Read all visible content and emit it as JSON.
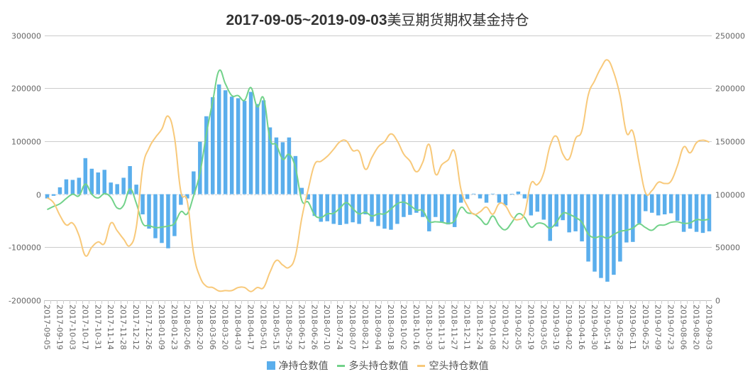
{
  "title": {
    "date_range": "2017-09-05~2019-09-03",
    "text": "美豆期货期权基金持仓"
  },
  "chart_data": {
    "type": "bar+line",
    "title": "2017-09-05~2019-09-03美豆期货期权基金持仓",
    "left_axis": {
      "ticks": [
        "300000",
        "200000",
        "100000",
        "0",
        "-100000",
        "-200000"
      ],
      "range": [
        -200000,
        300000
      ]
    },
    "right_axis": {
      "ticks": [
        "250000",
        "200000",
        "150000",
        "100000",
        "50000",
        "0"
      ],
      "range": [
        0,
        250000
      ]
    },
    "grid": true,
    "legend_position": "bottom",
    "x_tick_labels": [
      "2017-09-05",
      "2017-09-19",
      "2017-10-03",
      "2017-10-17",
      "2017-10-31",
      "2017-11-14",
      "2017-11-28",
      "2017-12-12",
      "2017-12-26",
      "2018-01-09",
      "2018-01-23",
      "2018-02-06",
      "2018-02-20",
      "2018-03-06",
      "2018-03-20",
      "2018-04-03",
      "2018-04-17",
      "2018-05-01",
      "2018-05-15",
      "2018-05-29",
      "2018-06-12",
      "2018-06-26",
      "2018-07-10",
      "2018-07-24",
      "2018-08-07",
      "2018-08-21",
      "2018-09-04",
      "2018-09-18",
      "2018-10-02",
      "2018-10-16",
      "2018-10-30",
      "2018-11-13",
      "2018-11-27",
      "2018-12-11",
      "2018-12-24",
      "2019-01-08",
      "2019-01-22",
      "2019-02-05",
      "2019-02-19",
      "2019-03-05",
      "2019-03-19",
      "2019-04-02",
      "2019-04-16",
      "2019-04-30",
      "2019-05-14",
      "2019-05-28",
      "2019-06-11",
      "2019-06-25",
      "2019-07-09",
      "2019-07-23",
      "2019-08-06",
      "2019-08-20",
      "2019-09-03"
    ],
    "series": [
      {
        "name": "净持仓数值",
        "type": "bar",
        "axis": "left",
        "color": "#5aaeec",
        "values": [
          -8000,
          -3000,
          13000,
          28000,
          27000,
          31000,
          68000,
          48000,
          41000,
          46000,
          22000,
          19000,
          31000,
          53000,
          18000,
          -38000,
          -65000,
          -83000,
          -92000,
          -102000,
          -79000,
          -20000,
          -8000,
          43000,
          99000,
          147000,
          183000,
          207000,
          196000,
          184000,
          181000,
          176000,
          193000,
          170000,
          177000,
          126000,
          107000,
          98000,
          107000,
          72000,
          12000,
          -10000,
          -41000,
          -52000,
          -51000,
          -56000,
          -58000,
          -56000,
          -53000,
          -56000,
          -38000,
          -52000,
          -60000,
          -65000,
          -67000,
          -56000,
          -43000,
          -39000,
          -35000,
          -43000,
          -70000,
          -43000,
          -53000,
          -57000,
          -62000,
          -16000,
          -9000,
          1000,
          -8000,
          -16000,
          1000,
          -16000,
          -21000,
          500,
          5000,
          -8000,
          -40000,
          -33000,
          -48000,
          -88000,
          -61000,
          -49000,
          -72000,
          -70000,
          -89000,
          -127000,
          -146000,
          -158000,
          -165000,
          -152000,
          -127000,
          -91000,
          -90000,
          -55000,
          -32000,
          -35000,
          -40000,
          -38000,
          -36000,
          -50000,
          -71000,
          -65000,
          -71000,
          -73000,
          -70000
        ]
      },
      {
        "name": "多头持仓数值",
        "type": "line",
        "axis": "left",
        "color": "#72d28a",
        "values": [
          -29000,
          -23000,
          -18000,
          -8000,
          0,
          -3000,
          19000,
          0,
          -7000,
          1000,
          -6000,
          -26000,
          -21000,
          10000,
          -17000,
          -55000,
          -59000,
          -63000,
          -62000,
          -60000,
          -55000,
          -33000,
          -37000,
          -3000,
          40000,
          113000,
          175000,
          233000,
          208000,
          186000,
          186000,
          177000,
          201000,
          165000,
          181000,
          104000,
          93000,
          66000,
          75000,
          50000,
          -12000,
          -15000,
          -39000,
          -44000,
          -37000,
          -36000,
          -26000,
          -16000,
          -27000,
          -37000,
          -34000,
          -41000,
          -37000,
          -37000,
          -28000,
          -18000,
          -15000,
          -21000,
          -30000,
          -31000,
          -51000,
          -52000,
          -53000,
          -55000,
          -50000,
          -25000,
          -35000,
          -37000,
          -46000,
          -57000,
          -41000,
          -59000,
          -67000,
          -53000,
          -37000,
          -44000,
          -62000,
          -55000,
          -56000,
          -64000,
          -53000,
          -36000,
          -38000,
          -44000,
          -53000,
          -75000,
          -82000,
          -79000,
          -83000,
          -76000,
          -70000,
          -68000,
          -64000,
          -56000,
          -63000,
          -68000,
          -59000,
          -58000,
          -53000,
          -52000,
          -55000,
          -54000,
          -48000,
          -49000,
          -47000
        ]
      },
      {
        "name": "空头持仓数值",
        "type": "line",
        "axis": "right",
        "color": "#f8c97a",
        "values": [
          96700,
          92000,
          80000,
          71000,
          72700,
          61000,
          42000,
          50000,
          55000,
          53700,
          72800,
          65500,
          57700,
          51500,
          68900,
          124500,
          143500,
          153500,
          161300,
          173600,
          153500,
          102300,
          93400,
          44300,
          22100,
          13200,
          12000,
          8700,
          9100,
          9100,
          12000,
          12000,
          8200,
          12000,
          12000,
          26500,
          37600,
          33200,
          31000,
          42000,
          77700,
          104500,
          127900,
          131000,
          135700,
          142400,
          149500,
          150200,
          141200,
          140200,
          123500,
          134600,
          144600,
          149500,
          156900,
          150200,
          137900,
          131200,
          121200,
          130100,
          146900,
          119000,
          127900,
          132400,
          140200,
          104500,
          88900,
          81100,
          83400,
          87800,
          81100,
          91100,
          88900,
          78900,
          76000,
          82200,
          110100,
          109000,
          120100,
          145700,
          154600,
          137900,
          133400,
          152400,
          160000,
          193600,
          207000,
          219200,
          226600,
          214800,
          192500,
          158000,
          159100,
          129000,
          101100,
          103400,
          111200,
          110100,
          112300,
          126800,
          144600,
          139000,
          148600,
          150900,
          149100
        ]
      }
    ]
  },
  "legend": {
    "items": [
      {
        "label": "净持仓数值",
        "color": "#5aaeec",
        "kind": "bar"
      },
      {
        "label": "多头持仓数值",
        "color": "#72d28a",
        "kind": "line"
      },
      {
        "label": "空头持仓数值",
        "color": "#f8c97a",
        "kind": "line"
      }
    ]
  }
}
